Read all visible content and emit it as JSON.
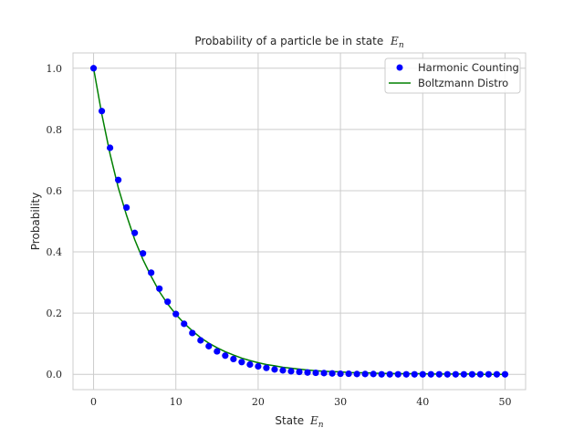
{
  "chart_data": {
    "type": "scatter",
    "title": "Probability of a particle be in state",
    "title_math": "E",
    "title_math_sub": "n",
    "xlabel": "State",
    "xlabel_math": "E",
    "xlabel_math_sub": "n",
    "ylabel": "Probability",
    "xlim": [
      -2.5,
      52.5
    ],
    "ylim": [
      -0.05,
      1.05
    ],
    "xticks": [
      0,
      10,
      20,
      30,
      40,
      50
    ],
    "yticks": [
      0.0,
      0.2,
      0.4,
      0.6,
      0.8,
      1.0
    ],
    "xtick_labels": [
      "0",
      "10",
      "20",
      "30",
      "40",
      "50"
    ],
    "ytick_labels": [
      "0.0",
      "0.2",
      "0.4",
      "0.6",
      "0.8",
      "1.0"
    ],
    "grid": true,
    "legend_position": "top-right",
    "series": [
      {
        "name": "Harmonic Counting",
        "type": "scatter",
        "color": "#0000ff",
        "x": [
          0,
          1,
          2,
          3,
          4,
          5,
          6,
          7,
          8,
          9,
          10,
          11,
          12,
          13,
          14,
          15,
          16,
          17,
          18,
          19,
          20,
          21,
          22,
          23,
          24,
          25,
          26,
          27,
          28,
          29,
          30,
          31,
          32,
          33,
          34,
          35,
          36,
          37,
          38,
          39,
          40,
          41,
          42,
          43,
          44,
          45,
          46,
          47,
          48,
          49,
          50
        ],
        "y": [
          1.0,
          0.86,
          0.74,
          0.635,
          0.545,
          0.462,
          0.395,
          0.332,
          0.28,
          0.237,
          0.197,
          0.165,
          0.135,
          0.111,
          0.092,
          0.075,
          0.061,
          0.05,
          0.04,
          0.032,
          0.026,
          0.021,
          0.016,
          0.013,
          0.01,
          0.008,
          0.006,
          0.005,
          0.004,
          0.003,
          0.002,
          0.002,
          0.001,
          0.001,
          0.001,
          0.0,
          0.0,
          0.0,
          0.0,
          0.0,
          0.0,
          0.0,
          0.0,
          0.0,
          0.0,
          0.0,
          0.0,
          0.0,
          0.0,
          0.0,
          0.0
        ]
      },
      {
        "name": "Boltzmann Distro",
        "type": "line",
        "color": "#008000",
        "x": [
          0,
          1,
          2,
          3,
          4,
          5,
          6,
          7,
          8,
          9,
          10,
          11,
          12,
          13,
          14,
          15,
          16,
          17,
          18,
          19,
          20,
          21,
          22,
          23,
          24,
          25,
          26,
          27,
          28,
          29,
          30,
          31,
          32,
          33,
          34,
          35,
          36,
          37,
          38,
          39,
          40,
          41,
          42,
          43,
          44,
          45,
          46,
          47,
          48,
          49,
          50
        ],
        "y": [
          1.0,
          0.85,
          0.72,
          0.61,
          0.52,
          0.44,
          0.375,
          0.32,
          0.27,
          0.23,
          0.196,
          0.167,
          0.142,
          0.12,
          0.102,
          0.087,
          0.074,
          0.063,
          0.053,
          0.045,
          0.038,
          0.032,
          0.028,
          0.023,
          0.02,
          0.017,
          0.014,
          0.012,
          0.01,
          0.009,
          0.008,
          0.006,
          0.005,
          0.005,
          0.004,
          0.003,
          0.003,
          0.002,
          0.002,
          0.002,
          0.002,
          0.001,
          0.001,
          0.001,
          0.001,
          0.001,
          0.001,
          0.0,
          0.0,
          0.0,
          0.0
        ]
      }
    ]
  }
}
